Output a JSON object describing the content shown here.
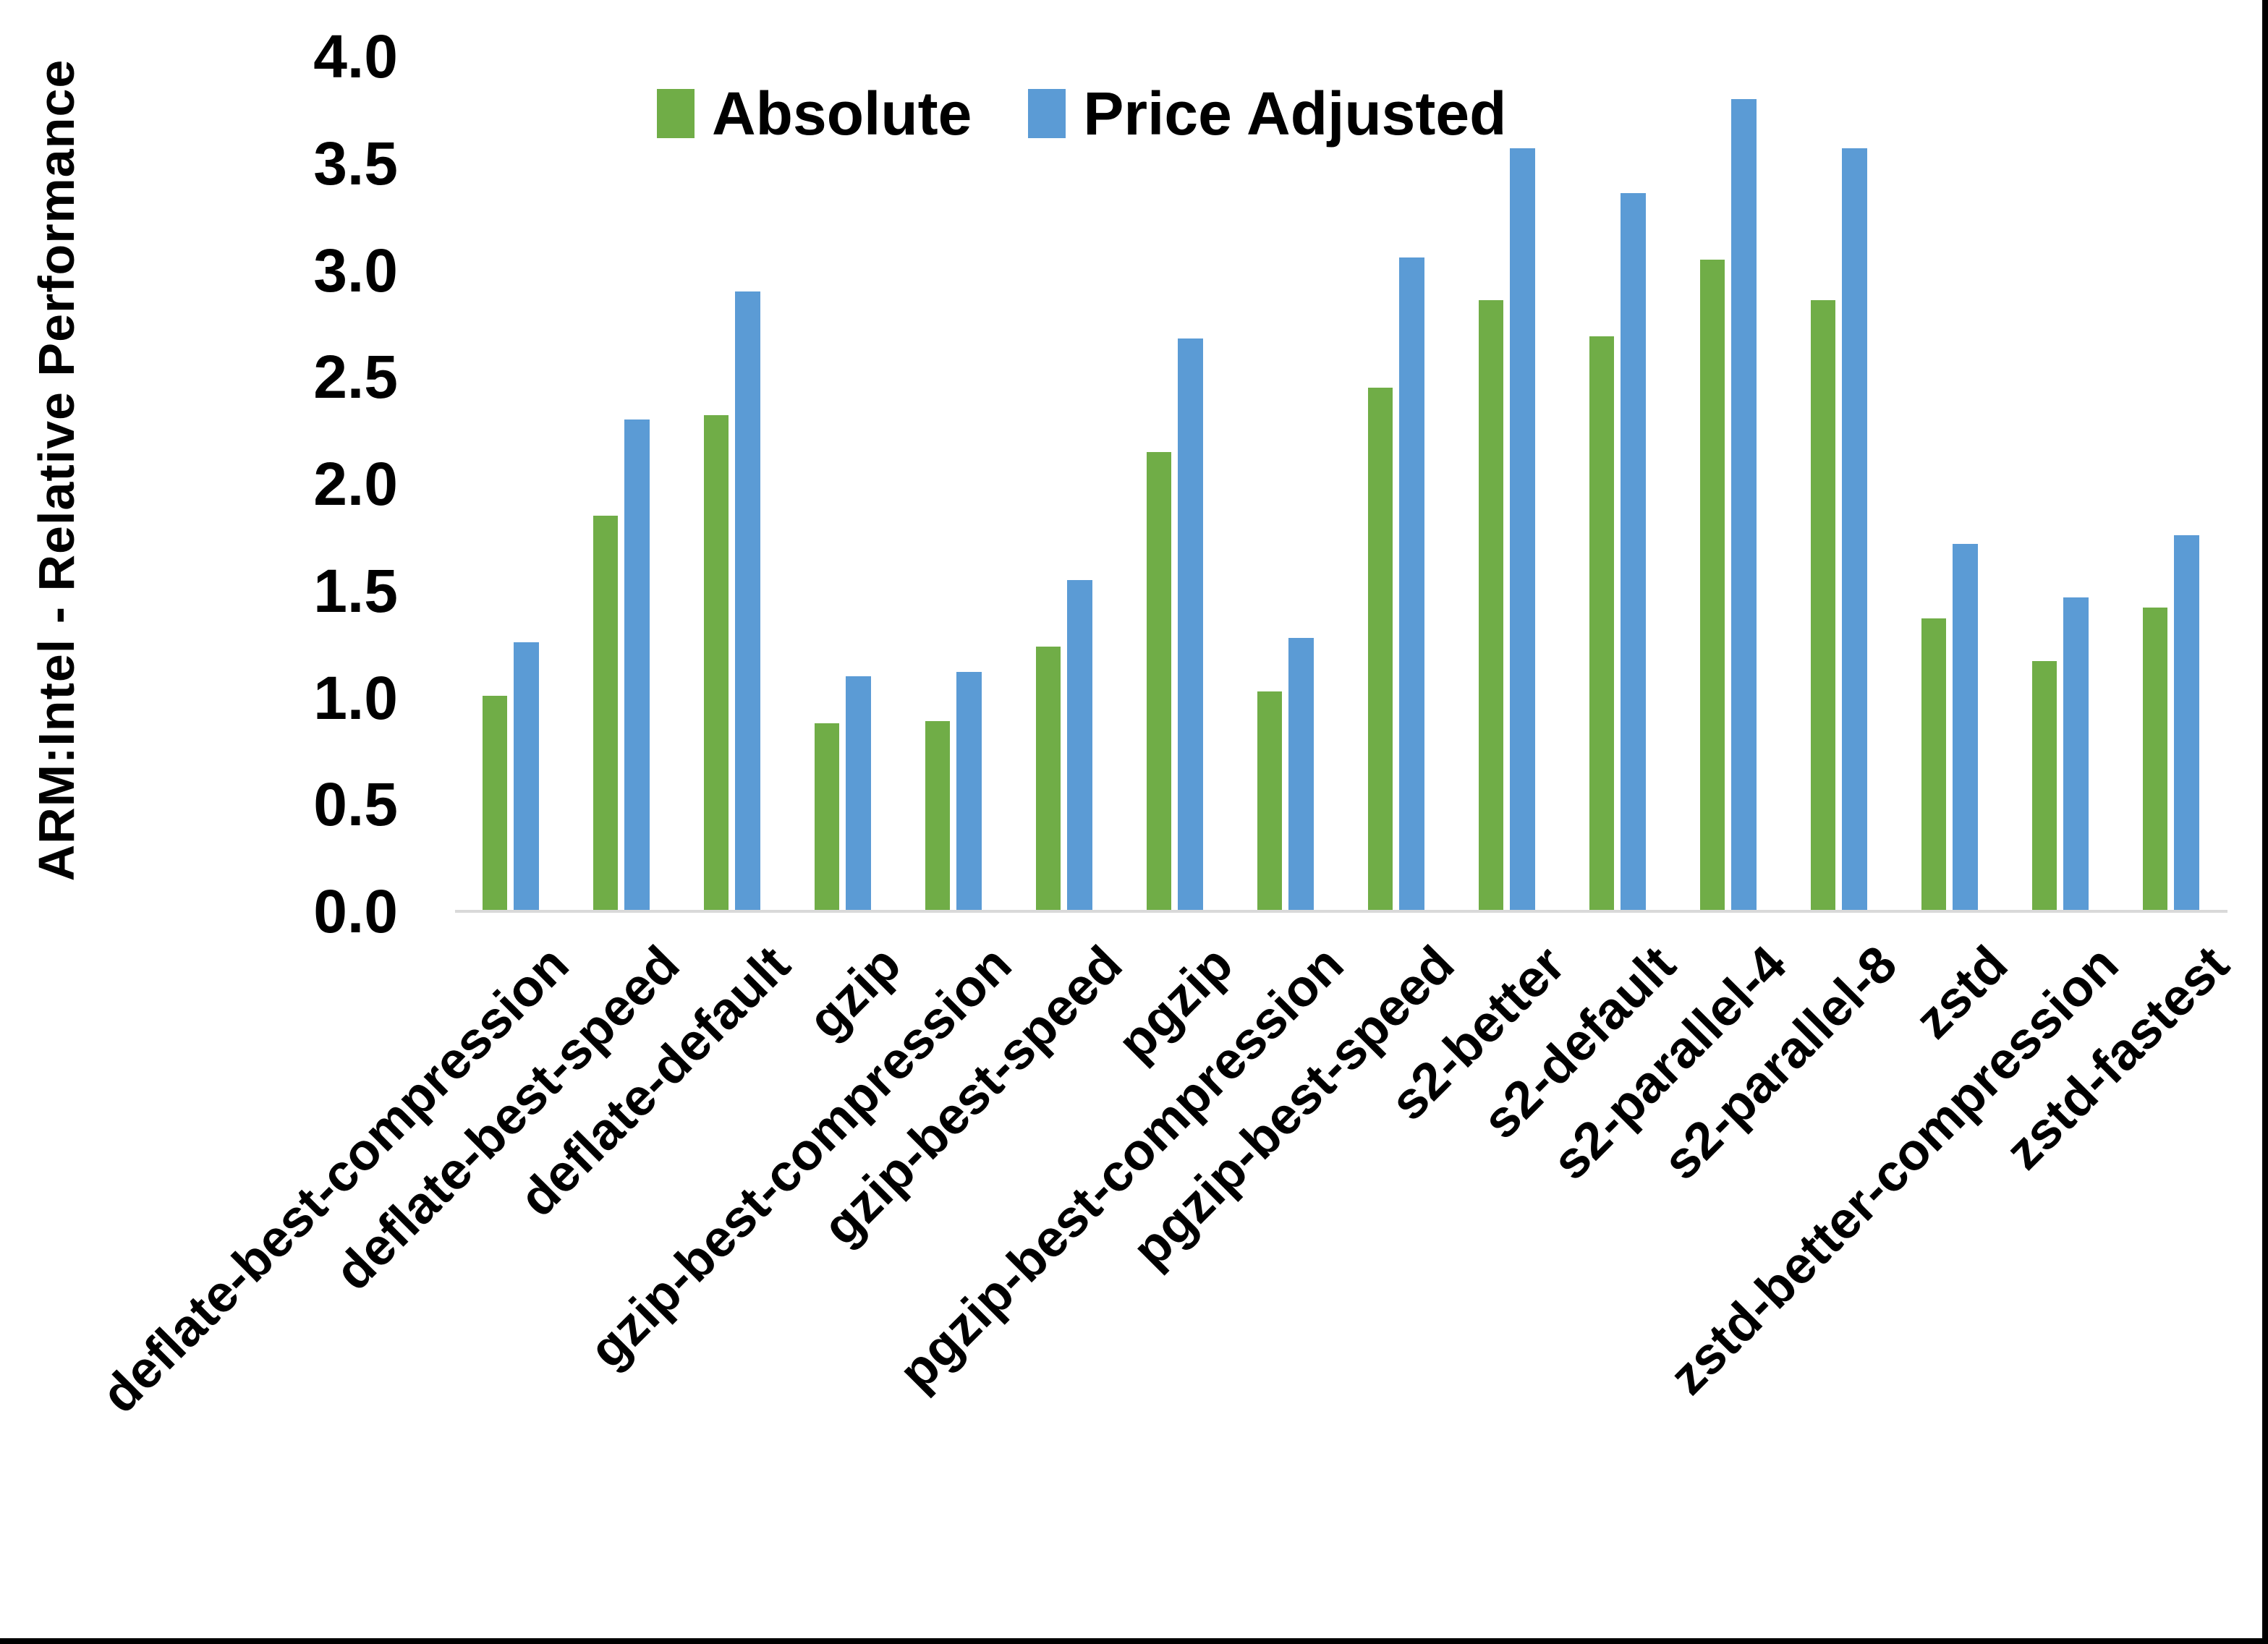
{
  "page": {
    "background": "#ffffff",
    "border_color": "#000000"
  },
  "legend": {
    "items": [
      {
        "label": "Absolute",
        "color": "#70AD47"
      },
      {
        "label": "Price Adjusted",
        "color": "#5B9BD5"
      }
    ]
  },
  "chart_data": {
    "type": "bar",
    "title": "",
    "xlabel": "",
    "ylabel": "ARM:Intel - Relative Performance",
    "ylim": [
      0.0,
      4.0
    ],
    "ytick_step": 0.5,
    "ytick_labels": [
      "0.0",
      "0.5",
      "1.0",
      "1.5",
      "2.0",
      "2.5",
      "3.0",
      "3.5",
      "4.0"
    ],
    "grid": false,
    "legend_position": "top-center",
    "axis_line_color": "#d9d9d9",
    "categories": [
      "deflate-best-compression",
      "deflate-best-speed",
      "deflate-default",
      "gzip",
      "gzip-best-compression",
      "gzip-best-speed",
      "pgzip",
      "pgzip-best-compression",
      "pgzip-best-speed",
      "s2-better",
      "s2-default",
      "s2-parallel-4",
      "s2-parallel-8",
      "zstd",
      "zstd-better-compression",
      "zstd-fastest"
    ],
    "series": [
      {
        "name": "Absolute",
        "color": "#70AD47",
        "values": [
          1.01,
          1.85,
          2.32,
          0.88,
          0.89,
          1.24,
          2.15,
          1.03,
          2.45,
          2.86,
          2.69,
          3.05,
          2.86,
          1.37,
          1.17,
          1.42
        ]
      },
      {
        "name": "Price Adjusted",
        "color": "#5B9BD5",
        "values": [
          1.26,
          2.3,
          2.9,
          1.1,
          1.12,
          1.55,
          2.68,
          1.28,
          3.06,
          3.57,
          3.36,
          3.8,
          3.57,
          1.72,
          1.47,
          1.76
        ]
      }
    ]
  }
}
